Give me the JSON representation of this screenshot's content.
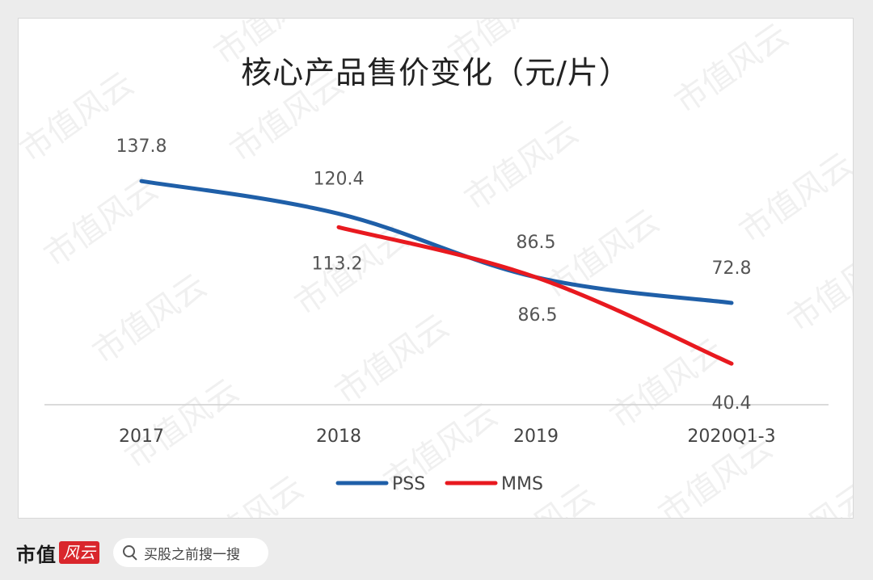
{
  "chart_data": {
    "type": "line",
    "title": "核心产品售价变化（元/片）",
    "categories": [
      "2017",
      "2018",
      "2019",
      "2020Q1-3"
    ],
    "series": [
      {
        "name": "PSS",
        "color": "#1f5fa8",
        "values": [
          137.8,
          120.4,
          86.5,
          72.8
        ],
        "labels": [
          "137.8",
          "120.4",
          "86.5",
          "72.8"
        ]
      },
      {
        "name": "MMS",
        "color": "#e8191f",
        "values": [
          null,
          113.2,
          86.5,
          40.4
        ],
        "labels": [
          "",
          "113.2",
          "86.5",
          "40.4"
        ]
      }
    ],
    "ylim": [
      0,
      160
    ],
    "grid": false,
    "legend_position": "bottom"
  },
  "watermark": "市值风云",
  "footer": {
    "brand_text": "市值",
    "brand_seal": "风云",
    "search_placeholder": "买股之前搜一搜",
    "search_icon": "search-icon"
  }
}
